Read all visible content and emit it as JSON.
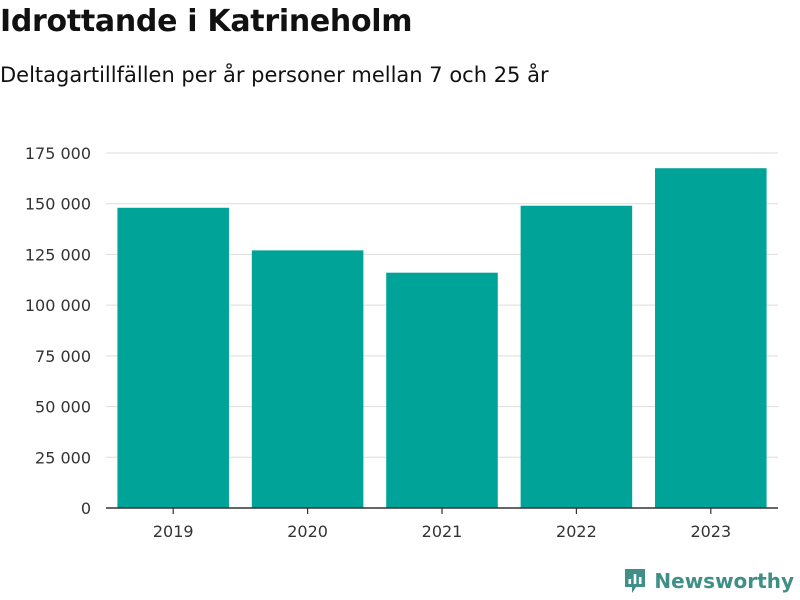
{
  "header": {
    "title": "Idrottande i Katrineholm",
    "subtitle": "Deltagartillfällen per år personer mellan 7 och 25 år"
  },
  "brand": {
    "name": "Newsworthy",
    "icon": "newsworthy-logo-icon",
    "color": "#3f8f87"
  },
  "chart_data": {
    "type": "bar",
    "title": "Idrottande i Katrineholm",
    "subtitle": "Deltagartillfällen per år personer mellan 7 och 25 år",
    "categories": [
      "2019",
      "2020",
      "2021",
      "2022",
      "2023"
    ],
    "values": [
      148000,
      127000,
      116000,
      149000,
      167500
    ],
    "xlabel": "",
    "ylabel": "",
    "ylim": [
      0,
      175000
    ],
    "yticks": [
      0,
      25000,
      50000,
      75000,
      100000,
      125000,
      150000,
      175000
    ],
    "ytick_labels": [
      "0",
      "25 000",
      "50 000",
      "75 000",
      "100 000",
      "125 000",
      "150 000",
      "175 000"
    ],
    "grid": "horizontal",
    "bar_color": "#00a398",
    "grid_color": "#dddddd",
    "axis_color": "#333333"
  }
}
